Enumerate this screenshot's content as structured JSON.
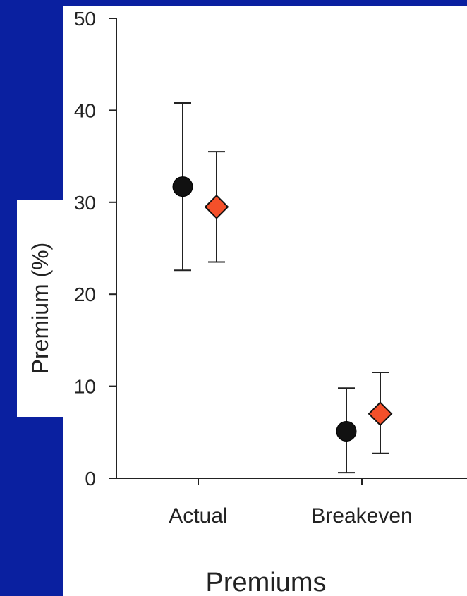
{
  "chart_data": {
    "type": "scatter",
    "title": "",
    "xlabel": "Premiums",
    "ylabel": "Premium (%)",
    "categories": [
      "Actual",
      "Breakeven"
    ],
    "ylim": [
      0,
      50
    ],
    "yticks": [
      0,
      10,
      20,
      30,
      40,
      50
    ],
    "grid": false,
    "series": [
      {
        "marker": "circle",
        "color": "#111111",
        "values": [
          31.7,
          5.1
        ],
        "error_low": [
          22.6,
          0.6
        ],
        "error_high": [
          40.8,
          9.8
        ]
      },
      {
        "marker": "diamond",
        "color": "#f4502a",
        "values": [
          29.5,
          7.0
        ],
        "error_low": [
          23.5,
          2.7
        ],
        "error_high": [
          35.5,
          11.5
        ]
      }
    ]
  }
}
